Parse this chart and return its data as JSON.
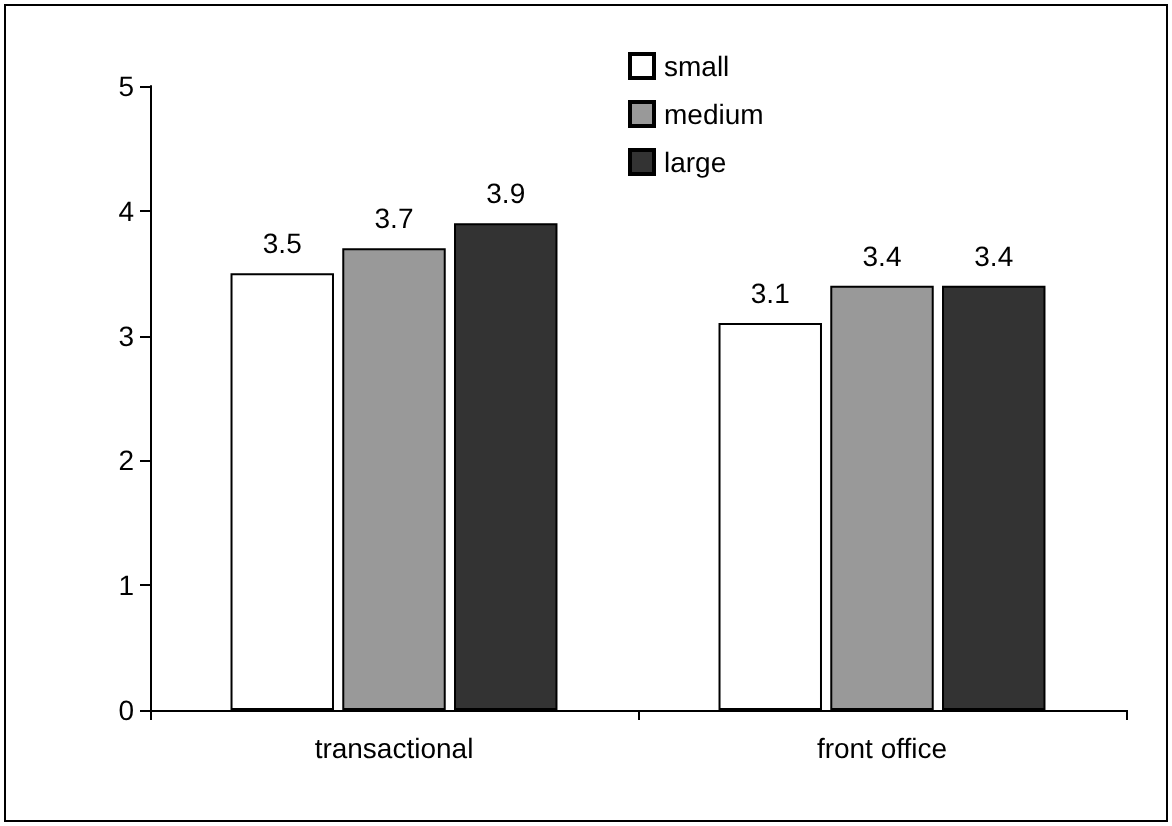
{
  "chart_data": {
    "type": "bar",
    "categories": [
      "transactional",
      "front office"
    ],
    "series": [
      {
        "name": "small",
        "color": "#ffffff",
        "values": [
          3.5,
          3.1
        ]
      },
      {
        "name": "medium",
        "color": "#999999",
        "values": [
          3.7,
          3.4
        ]
      },
      {
        "name": "large",
        "color": "#333333",
        "values": [
          3.9,
          3.4
        ]
      }
    ],
    "ylim": [
      0,
      5
    ],
    "yticks": [
      0,
      1,
      2,
      3,
      4,
      5
    ],
    "grid": false,
    "legend": "top",
    "data_labels": true
  }
}
